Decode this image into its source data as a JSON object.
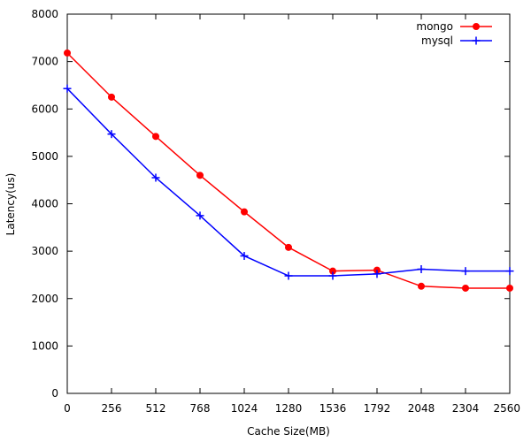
{
  "chart_data": {
    "type": "line",
    "xlabel": "Cache Size(MB)",
    "ylabel": "Latency(us)",
    "x": [
      0,
      256,
      512,
      768,
      1024,
      1280,
      1536,
      1792,
      2048,
      2304,
      2560
    ],
    "xlim": [
      0,
      2560
    ],
    "ylim": [
      0,
      8000
    ],
    "x_ticks": [
      "0",
      "256",
      "512",
      "768",
      "1024",
      "1280",
      "1536",
      "1792",
      "2048",
      "2304",
      "2560"
    ],
    "y_ticks": [
      "0",
      "1000",
      "2000",
      "3000",
      "4000",
      "5000",
      "6000",
      "7000",
      "8000"
    ],
    "grid": false,
    "legend_position": "top-right",
    "series": [
      {
        "name": "mongo",
        "color": "#ff0000",
        "marker": "filled-circle",
        "values": [
          7180,
          6250,
          5420,
          4600,
          3830,
          3080,
          2580,
          2600,
          2260,
          2220,
          2220
        ]
      },
      {
        "name": "mysql",
        "color": "#0000ff",
        "marker": "plus",
        "values": [
          6430,
          5470,
          4550,
          3750,
          2900,
          2480,
          2480,
          2520,
          2620,
          2580,
          2580
        ]
      }
    ]
  }
}
